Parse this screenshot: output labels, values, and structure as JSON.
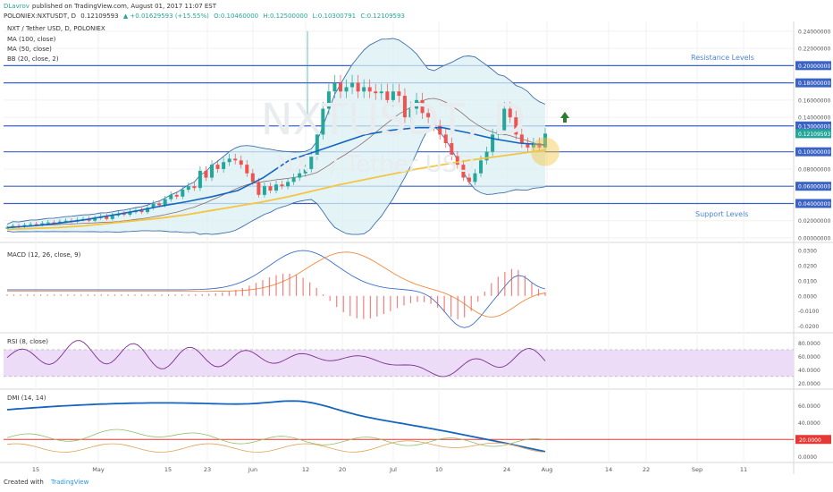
{
  "header": {
    "author": "DLavrov",
    "published": "published on TradingView.com, August 01, 2017 11:07 EST",
    "symbol": "POLONIEX:NXTUSDT, D",
    "price": "0.12109593",
    "change": "▲ +0.01629593 (+15.55%)",
    "open": "O:0.10460000",
    "high": "H:0.12500000",
    "low": "L:0.10300791",
    "close": "C:0.12109593"
  },
  "main_legend": {
    "title": "NXT / Tether USD, D, POLONIEX",
    "ma100": "MA (100, close)",
    "ma50": "MA (50, close)",
    "bb": "BB (20, close, 2)"
  },
  "watermark": {
    "symbol": "NXTUSDT, D",
    "name": "NXT / Tether USD"
  },
  "annotations": {
    "resistance": "Resistance Levels",
    "support": "Support Levels"
  },
  "panes": {
    "macd": {
      "label": "MACD (12, 26, close, 9)",
      "ticks": [
        "0.0300",
        "0.0200",
        "0.0100",
        "0.0000",
        "-0.0100",
        "-0.0200"
      ]
    },
    "rsi": {
      "label": "RSI (8, close)",
      "ticks": [
        "80.0000",
        "60.0000",
        "40.0000",
        "20.0000"
      ]
    },
    "dmi": {
      "label": "DMI (14, 14)",
      "ticks": [
        "60.0000",
        "40.0000",
        "0.0000"
      ],
      "level_label": "20.0000"
    }
  },
  "footer": {
    "created_with": "Created with",
    "brand": "TradingView"
  },
  "colors": {
    "candle_up": "#26a69a",
    "candle_down": "#ef5350",
    "ma100": "#f5c542",
    "ma50": "#1565c0",
    "bb": "#3f6fa8",
    "level_line": "#3b63c4",
    "red_line": "#e53935"
  },
  "chart_data": {
    "type": "candlestick",
    "title": "NXT / Tether USD, D, POLONIEX",
    "x_ticks": [
      "15",
      "May",
      "15",
      "23",
      "Jun",
      "12",
      "20",
      "Jul",
      "10",
      "24",
      "Aug",
      "14",
      "22",
      "Sep",
      "11"
    ],
    "price_ticks": [
      "0.24000000",
      "0.22000000",
      "0.20000000",
      "0.18000000",
      "0.16000000",
      "0.14000000",
      "0.13000000",
      "0.12109593",
      "0.10000000",
      "0.08000000",
      "0.06000000",
      "0.04000000",
      "0.02000000",
      "0.00000000"
    ],
    "ylim": [
      0,
      0.245
    ],
    "highlighted_levels": [
      0.2,
      0.18,
      0.13,
      0.1,
      0.06,
      0.04
    ],
    "candles_close": [
      0.012,
      0.014,
      0.013,
      0.015,
      0.016,
      0.015,
      0.017,
      0.018,
      0.017,
      0.019,
      0.02,
      0.019,
      0.021,
      0.022,
      0.02,
      0.023,
      0.025,
      0.022,
      0.026,
      0.028,
      0.027,
      0.03,
      0.032,
      0.03,
      0.035,
      0.04,
      0.038,
      0.045,
      0.05,
      0.048,
      0.056,
      0.06,
      0.058,
      0.078,
      0.07,
      0.085,
      0.08,
      0.088,
      0.092,
      0.09,
      0.085,
      0.075,
      0.065,
      0.05,
      0.06,
      0.055,
      0.062,
      0.06,
      0.065,
      0.07,
      0.075,
      0.08,
      0.095,
      0.12,
      0.15,
      0.17,
      0.18,
      0.17,
      0.175,
      0.18,
      0.17,
      0.175,
      0.17,
      0.168,
      0.17,
      0.16,
      0.17,
      0.165,
      0.14,
      0.15,
      0.16,
      0.145,
      0.14,
      0.13,
      0.12,
      0.11,
      0.095,
      0.085,
      0.07,
      0.065,
      0.075,
      0.09,
      0.1,
      0.12,
      0.125,
      0.15,
      0.14,
      0.12,
      0.11,
      0.105,
      0.11,
      0.105,
      0.12109593
    ],
    "series": [
      {
        "name": "MA (100, close)",
        "values": [
          0.01,
          0.011,
          0.012,
          0.014,
          0.017,
          0.02,
          0.023,
          0.027,
          0.032,
          0.037,
          0.042,
          0.048,
          0.055,
          0.062,
          0.068,
          0.074,
          0.08,
          0.085,
          0.09,
          0.094,
          0.098,
          0.102
        ]
      },
      {
        "name": "MA (50, close)",
        "values": [
          0.012,
          0.014,
          0.017,
          0.021,
          0.026,
          0.031,
          0.037,
          0.042,
          0.048,
          0.055,
          0.07,
          0.09,
          0.1,
          0.11,
          0.12,
          0.125,
          0.128,
          0.128,
          0.122,
          0.115,
          0.11,
          0.108
        ]
      }
    ],
    "macd": {
      "ylim": [
        -0.022,
        0.033
      ]
    },
    "rsi": {
      "ylim": [
        15,
        90
      ],
      "band": [
        30,
        70
      ]
    },
    "dmi": {
      "ylim": [
        -5,
        75
      ],
      "level": 20
    }
  }
}
